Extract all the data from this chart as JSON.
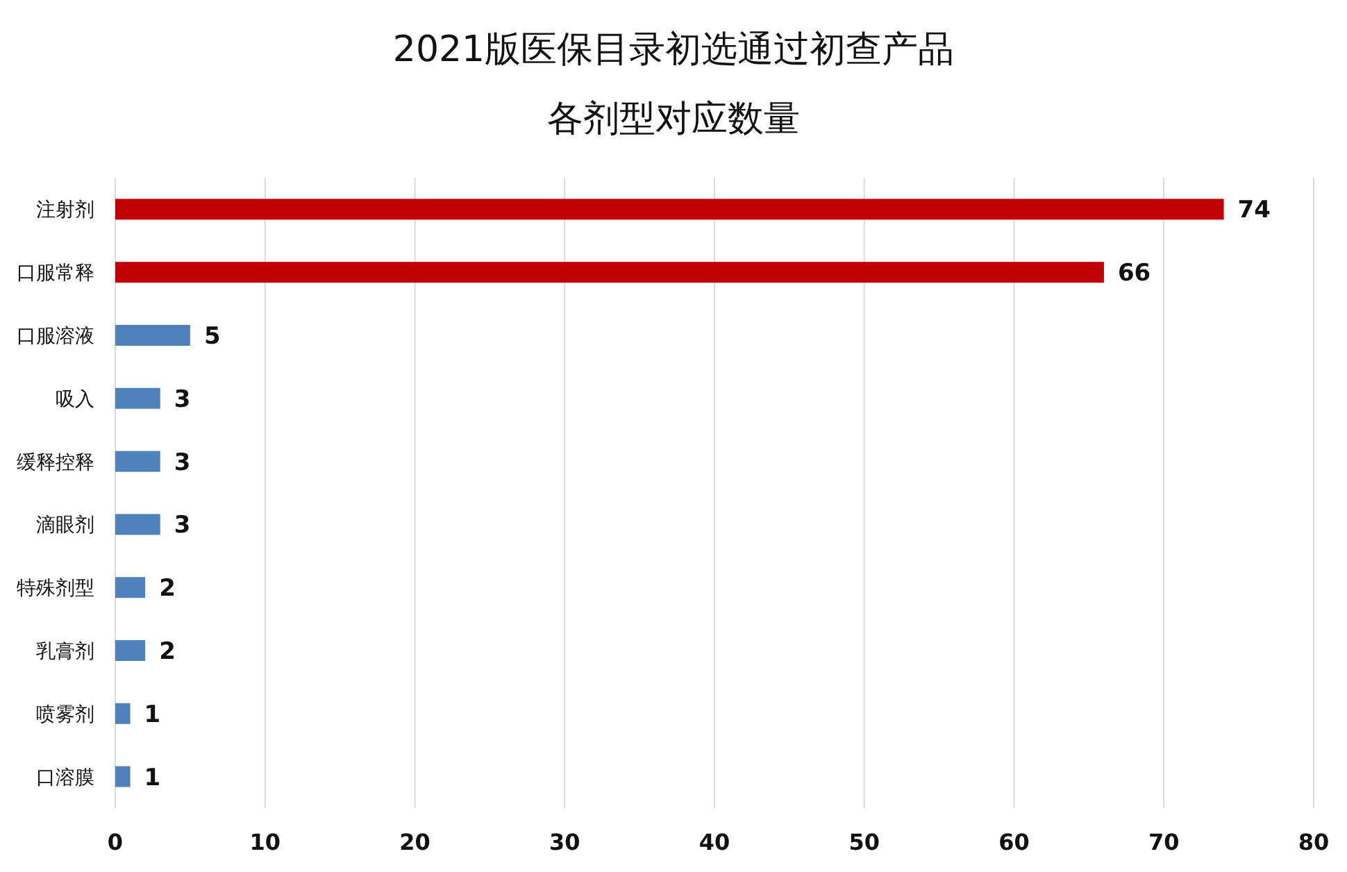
{
  "chart_data": {
    "type": "bar",
    "title": "2021版医保目录初选通过初查产品",
    "subtitle": "各剂型对应数量",
    "orientation": "horizontal",
    "categories": [
      "注射剂",
      "口服常释",
      "口服溶液",
      "吸入",
      "缓释控释",
      "滴眼剂",
      "特殊剂型",
      "乳膏剂",
      "喷雾剂",
      "口溶膜"
    ],
    "values": [
      74,
      66,
      5,
      3,
      3,
      3,
      2,
      2,
      1,
      1
    ],
    "colors": [
      "#c00000",
      "#c00000",
      "#4f81bd",
      "#4f81bd",
      "#4f81bd",
      "#4f81bd",
      "#4f81bd",
      "#4f81bd",
      "#4f81bd",
      "#4f81bd"
    ],
    "xlim": [
      0,
      80
    ],
    "xticks": [
      0,
      10,
      20,
      30,
      40,
      50,
      60,
      70,
      80
    ],
    "grid": "x",
    "data_labels": true
  }
}
